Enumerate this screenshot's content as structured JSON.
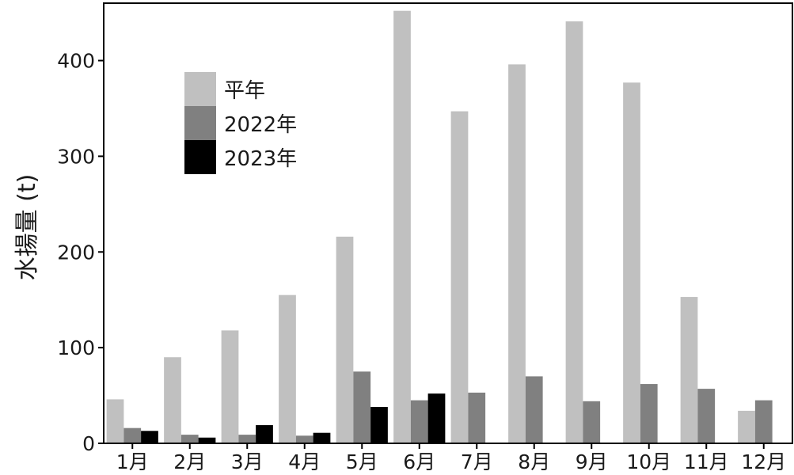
{
  "chart_data": {
    "type": "bar",
    "title": "",
    "xlabel": "",
    "ylabel": "水揚量 (t)",
    "ylim": [
      0,
      460
    ],
    "yticks": [
      0,
      100,
      200,
      300,
      400
    ],
    "grid": false,
    "legend_position": "top-left",
    "categories": [
      "1月",
      "2月",
      "3月",
      "4月",
      "5月",
      "6月",
      "7月",
      "8月",
      "9月",
      "10月",
      "11月",
      "12月"
    ],
    "series": [
      {
        "name": "平年",
        "color": "#c0c0c0",
        "values": [
          46,
          90,
          118,
          155,
          216,
          452,
          347,
          396,
          441,
          377,
          153,
          34
        ]
      },
      {
        "name": "2022年",
        "color": "#808080",
        "values": [
          16,
          9,
          9,
          8,
          75,
          45,
          53,
          70,
          44,
          62,
          57,
          45
        ]
      },
      {
        "name": "2023年",
        "color": "#000000",
        "values": [
          13,
          6,
          19,
          11,
          38,
          52,
          null,
          null,
          null,
          null,
          null,
          null
        ]
      }
    ]
  }
}
